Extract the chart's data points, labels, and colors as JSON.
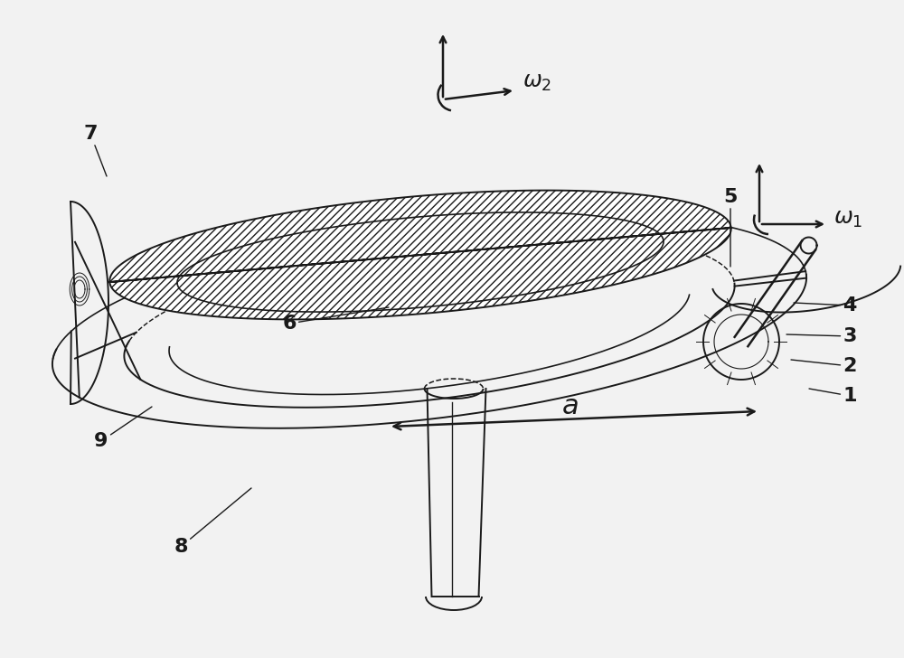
{
  "background_color": "#f2f2f2",
  "line_color": "#1a1a1a",
  "figure_width": 10.0,
  "figure_height": 7.28,
  "dpi": 100
}
